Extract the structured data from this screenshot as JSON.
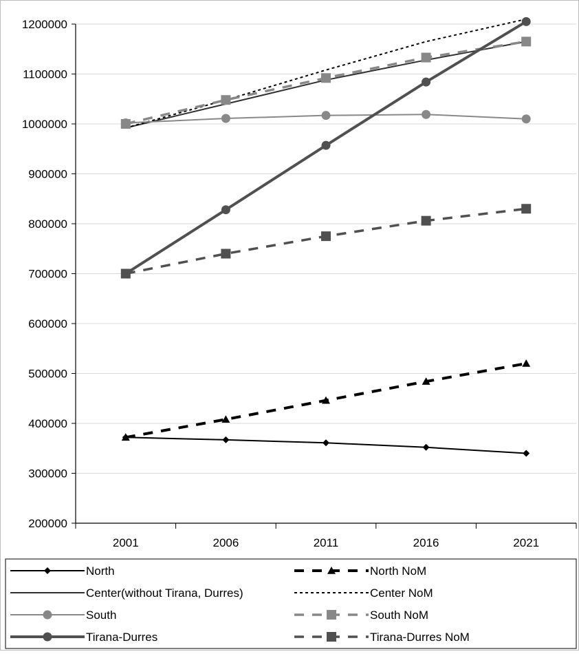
{
  "chart_data": {
    "type": "line",
    "title": "",
    "xlabel": "",
    "ylabel": "",
    "categories": [
      "2001",
      "2006",
      "2011",
      "2016",
      "2021"
    ],
    "ylim": [
      200000,
      1200000
    ],
    "yticks": [
      200000,
      300000,
      400000,
      500000,
      600000,
      700000,
      800000,
      900000,
      1000000,
      1100000,
      1200000
    ],
    "ytick_labels": [
      "200000",
      "300000",
      "400000",
      "500000",
      "600000",
      "700000",
      "800000",
      "900000",
      "1000000",
      "1100000",
      "1200000"
    ],
    "grid": "horizontal",
    "legend_position": "bottom",
    "series": [
      {
        "name": "North",
        "values": [
          372000,
          367000,
          361000,
          352000,
          340000
        ],
        "color": "#000000",
        "dash": "solid",
        "marker": "diamond",
        "legend_row": 0,
        "legend_col": 0
      },
      {
        "name": "North NoM",
        "values": [
          372000,
          408000,
          446000,
          484000,
          520000
        ],
        "color": "#000000",
        "dash": "dashed",
        "marker": "triangle",
        "legend_row": 0,
        "legend_col": 1
      },
      {
        "name": "Center(without Tirana, Durres)",
        "values": [
          992000,
          1040000,
          1088000,
          1128000,
          1165000
        ],
        "color": "#303030",
        "dash": "solid",
        "marker": "none",
        "legend_row": 1,
        "legend_col": 0
      },
      {
        "name": "Center NoM",
        "values": [
          992000,
          1048000,
          1108000,
          1165000,
          1210000
        ],
        "color": "#000000",
        "dash": "dotted",
        "marker": "none",
        "legend_row": 1,
        "legend_col": 1
      },
      {
        "name": "South",
        "values": [
          1002000,
          1011000,
          1017000,
          1019000,
          1010000
        ],
        "color": "#888888",
        "dash": "solid",
        "marker": "circle",
        "legend_row": 2,
        "legend_col": 0
      },
      {
        "name": "South NoM",
        "values": [
          1000000,
          1048000,
          1092000,
          1133000,
          1165000
        ],
        "color": "#888888",
        "dash": "dashed",
        "marker": "square",
        "legend_row": 2,
        "legend_col": 1
      },
      {
        "name": "Tirana-Durres",
        "values": [
          700000,
          828000,
          957000,
          1084000,
          1205000
        ],
        "color": "#505050",
        "dash": "solid",
        "marker": "circle",
        "legend_row": 3,
        "legend_col": 0
      },
      {
        "name": "Tirana-Durres NoM",
        "values": [
          700000,
          740000,
          775000,
          806000,
          830000
        ],
        "color": "#505050",
        "dash": "dashed",
        "marker": "square",
        "legend_row": 3,
        "legend_col": 1
      }
    ]
  }
}
